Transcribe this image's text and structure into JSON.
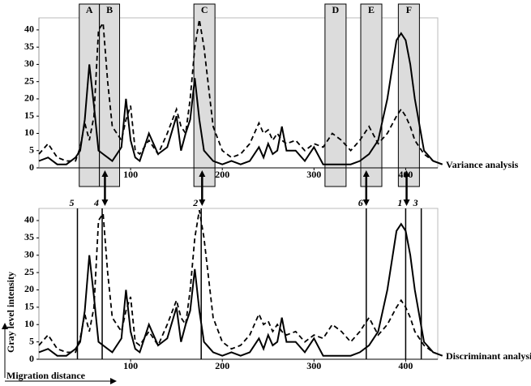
{
  "chart_data": [
    {
      "type": "line",
      "annotation": "Variance analysis",
      "x": [
        0,
        10,
        20,
        30,
        40,
        45,
        50,
        55,
        60,
        65,
        70,
        75,
        80,
        90,
        95,
        100,
        105,
        110,
        120,
        130,
        140,
        150,
        155,
        160,
        165,
        170,
        175,
        180,
        190,
        200,
        210,
        220,
        230,
        240,
        245,
        250,
        255,
        260,
        265,
        270,
        280,
        290,
        300,
        310,
        320,
        330,
        340,
        350,
        360,
        370,
        380,
        390,
        395,
        400,
        405,
        410,
        420,
        430,
        440
      ],
      "series": [
        {
          "style": "solid",
          "color": "#000000",
          "values": [
            2,
            3,
            1,
            1,
            3,
            5,
            14,
            30,
            18,
            5,
            4,
            3,
            2,
            6,
            20,
            8,
            3,
            2,
            10,
            4,
            6,
            15,
            5,
            10,
            14,
            26,
            14,
            5,
            2,
            1,
            2,
            1,
            2,
            6,
            3,
            7,
            4,
            5,
            12,
            5,
            5,
            2,
            6,
            1,
            1,
            1,
            1,
            2,
            4,
            8,
            20,
            37,
            39,
            37,
            30,
            20,
            5,
            2,
            1
          ]
        },
        {
          "style": "dashed",
          "color": "#000000",
          "values": [
            4,
            7,
            3,
            2,
            2,
            6,
            13,
            8,
            15,
            40,
            42,
            25,
            12,
            8,
            14,
            18,
            5,
            4,
            8,
            4,
            10,
            17,
            12,
            10,
            20,
            35,
            43,
            35,
            12,
            5,
            3,
            4,
            7,
            13,
            10,
            11,
            8,
            10,
            8,
            7,
            8,
            5,
            7,
            6,
            10,
            8,
            5,
            8,
            12,
            7,
            10,
            15,
            17,
            15,
            12,
            8,
            4,
            2,
            1
          ]
        }
      ],
      "regions": [
        {
          "label": "A",
          "xlim": [
            44,
            66
          ]
        },
        {
          "label": "B",
          "xlim": [
            66,
            88
          ]
        },
        {
          "label": "C",
          "xlim": [
            169,
            192
          ]
        },
        {
          "label": "D",
          "xlim": [
            312,
            335
          ]
        },
        {
          "label": "E",
          "xlim": [
            351,
            374
          ]
        },
        {
          "label": "F",
          "xlim": [
            392,
            415
          ]
        }
      ],
      "arrows": [
        72,
        178,
        357,
        401
      ],
      "xlim": [
        0,
        435
      ],
      "ylim": [
        0,
        43.5
      ],
      "xticks": [
        100,
        200,
        300,
        400
      ],
      "yticks": [
        0,
        5,
        10,
        15,
        20,
        25,
        30,
        35,
        40
      ]
    },
    {
      "type": "line",
      "annotation": "Discriminant analysis",
      "ylabel": "Gray level intensity",
      "xlabel": "Migration distance",
      "x": [
        0,
        10,
        20,
        30,
        40,
        45,
        50,
        55,
        60,
        65,
        70,
        75,
        80,
        90,
        95,
        100,
        105,
        110,
        120,
        130,
        140,
        150,
        155,
        160,
        165,
        170,
        175,
        180,
        190,
        200,
        210,
        220,
        230,
        240,
        245,
        250,
        255,
        260,
        265,
        270,
        280,
        290,
        300,
        310,
        320,
        330,
        340,
        350,
        360,
        370,
        380,
        390,
        395,
        400,
        405,
        410,
        420,
        430,
        440
      ],
      "series": [
        {
          "style": "solid",
          "color": "#000000",
          "values": [
            2,
            3,
            1,
            1,
            3,
            5,
            14,
            30,
            18,
            5,
            4,
            3,
            2,
            6,
            20,
            8,
            3,
            2,
            10,
            4,
            6,
            15,
            5,
            10,
            14,
            26,
            14,
            5,
            2,
            1,
            2,
            1,
            2,
            6,
            3,
            7,
            4,
            5,
            12,
            5,
            5,
            2,
            6,
            1,
            1,
            1,
            1,
            2,
            4,
            8,
            20,
            37,
            39,
            37,
            30,
            20,
            5,
            2,
            1
          ]
        },
        {
          "style": "dashed",
          "color": "#000000",
          "values": [
            4,
            7,
            3,
            2,
            2,
            6,
            13,
            8,
            15,
            40,
            42,
            25,
            12,
            8,
            14,
            18,
            5,
            4,
            8,
            4,
            10,
            17,
            12,
            10,
            20,
            35,
            43,
            35,
            12,
            5,
            3,
            4,
            7,
            13,
            10,
            11,
            8,
            10,
            8,
            7,
            8,
            5,
            7,
            6,
            10,
            8,
            5,
            8,
            12,
            7,
            10,
            15,
            17,
            15,
            12,
            8,
            4,
            2,
            1
          ]
        }
      ],
      "markers": [
        {
          "label": "5",
          "x": 42
        },
        {
          "label": "4",
          "x": 69
        },
        {
          "label": "2",
          "x": 177
        },
        {
          "label": "6",
          "x": 357
        },
        {
          "label": "1",
          "x": 400
        },
        {
          "label": "3",
          "x": 417
        }
      ],
      "xlim": [
        0,
        435
      ],
      "ylim": [
        0,
        43.5
      ],
      "xticks": [
        100,
        200,
        300,
        400
      ],
      "yticks": [
        0,
        5,
        10,
        15,
        20,
        25,
        30,
        35,
        40
      ]
    }
  ]
}
